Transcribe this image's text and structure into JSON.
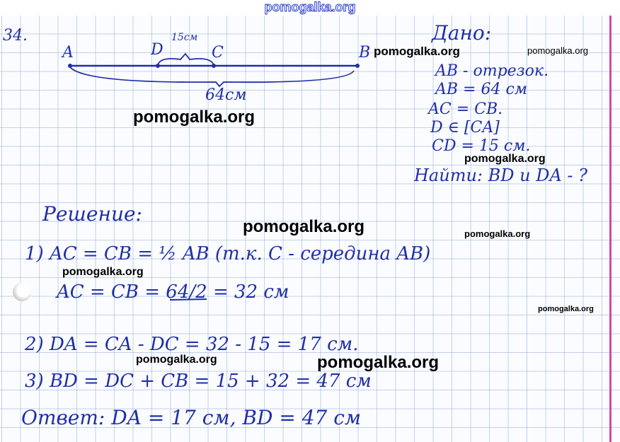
{
  "watermark_top": "pomogalka.org",
  "watermarks": [
    "pomogalka.org",
    "pomogalka.org",
    "pomogalka.org",
    "pomogalka.org",
    "pomogalka.org",
    "pomogalka.org",
    "pomogalka.org",
    "pomogalka.org",
    "pomogalka.org",
    "pomogalka.org"
  ],
  "problem_number": "34.",
  "diagram": {
    "A": "A",
    "D": "D",
    "C": "C",
    "B": "B",
    "dc_length": "15см",
    "ab_length": "64см"
  },
  "given": {
    "title": "Дано:",
    "lines": [
      "AB - отрезок.",
      "AB = 64 см",
      "AC = CB.",
      "D ∈ [CA]",
      "CD = 15 см."
    ],
    "find": "Найти: BD и DA - ?"
  },
  "solution": {
    "title": "Решение:",
    "lines": [
      "1)  AC = CB = ½ AB  (т.к. C - середина AB)",
      "AC = CB = 64/2 = 32 см",
      "2)  DA = CA - DC = 32 - 15 = 17 см.",
      "3)  BD = DC + CB = 15 + 32 = 47 см"
    ],
    "answer": "Ответ:  DA = 17 см,   BD = 47 см"
  },
  "colors": {
    "ink": "#1f2fa8",
    "margin_line": "#d04aa6",
    "grid": "#96afd7"
  }
}
